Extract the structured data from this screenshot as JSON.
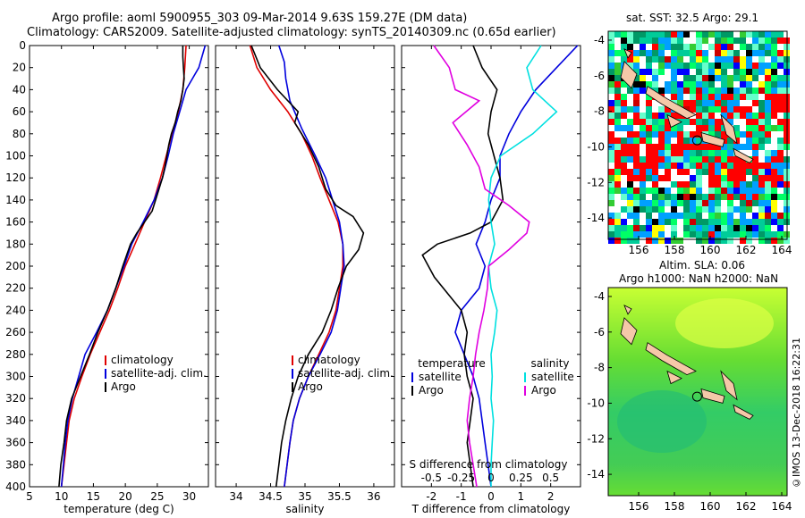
{
  "header": {
    "title_line1": "Argo profile: aoml 5900955_303 09-Mar-2014 9.63S 159.27E (DM data)",
    "title_line2": "Climatology: CARS2009. Satellite-adjusted climatology: synTS_20140309.nc (0.65d earlier)"
  },
  "colors": {
    "climatology": "#e00000",
    "satellite": "#0000dd",
    "argo": "#000000",
    "sal_satellite": "#00e0e0",
    "sal_argo": "#e000e0"
  },
  "chart_data": [
    {
      "type": "line",
      "id": "temperature",
      "xlabel": "temperature (deg C)",
      "xlim": [
        5,
        33
      ],
      "ylim": [
        400,
        0
      ],
      "xticks": [
        5,
        10,
        15,
        20,
        25,
        30
      ],
      "yticks": [
        0,
        20,
        40,
        60,
        80,
        100,
        120,
        140,
        160,
        180,
        200,
        220,
        240,
        260,
        280,
        300,
        320,
        340,
        360,
        380,
        400
      ],
      "legend": [
        "climatology",
        "satellite-adj. clim.",
        "Argo"
      ],
      "series": [
        {
          "name": "climatology",
          "color": "#e00000",
          "points": [
            [
              29.5,
              0
            ],
            [
              29.3,
              20
            ],
            [
              29.0,
              40
            ],
            [
              28.3,
              60
            ],
            [
              27.3,
              80
            ],
            [
              26.4,
              100
            ],
            [
              25.5,
              120
            ],
            [
              24.5,
              140
            ],
            [
              23.0,
              160
            ],
            [
              21.5,
              180
            ],
            [
              20.0,
              200
            ],
            [
              18.8,
              220
            ],
            [
              17.5,
              240
            ],
            [
              16.0,
              260
            ],
            [
              14.5,
              280
            ],
            [
              13.2,
              300
            ],
            [
              12.0,
              320
            ],
            [
              11.2,
              340
            ],
            [
              10.8,
              360
            ],
            [
              10.4,
              380
            ],
            [
              10.0,
              400
            ]
          ]
        },
        {
          "name": "satellite-adj. clim.",
          "color": "#0000dd",
          "points": [
            [
              32.5,
              0
            ],
            [
              31.5,
              20
            ],
            [
              29.5,
              40
            ],
            [
              28.5,
              60
            ],
            [
              27.5,
              80
            ],
            [
              26.7,
              100
            ],
            [
              25.8,
              120
            ],
            [
              24.5,
              140
            ],
            [
              22.8,
              160
            ],
            [
              21.0,
              180
            ],
            [
              19.8,
              200
            ],
            [
              18.5,
              220
            ],
            [
              17.2,
              240
            ],
            [
              15.5,
              260
            ],
            [
              13.7,
              280
            ],
            [
              12.7,
              300
            ],
            [
              11.7,
              320
            ],
            [
              11.0,
              340
            ],
            [
              10.6,
              360
            ],
            [
              10.3,
              380
            ],
            [
              10.0,
              400
            ]
          ]
        },
        {
          "name": "Argo",
          "color": "#000000",
          "points": [
            [
              29.0,
              0
            ],
            [
              29.0,
              10
            ],
            [
              29.1,
              20
            ],
            [
              29.2,
              30
            ],
            [
              29.0,
              40
            ],
            [
              28.7,
              50
            ],
            [
              28.2,
              60
            ],
            [
              27.8,
              70
            ],
            [
              27.2,
              80
            ],
            [
              26.8,
              90
            ],
            [
              26.5,
              100
            ],
            [
              26.2,
              110
            ],
            [
              25.8,
              120
            ],
            [
              25.0,
              135
            ],
            [
              24.2,
              150
            ],
            [
              23.0,
              160
            ],
            [
              21.8,
              170
            ],
            [
              20.8,
              180
            ],
            [
              20.2,
              190
            ],
            [
              19.6,
              200
            ],
            [
              18.5,
              220
            ],
            [
              17.2,
              240
            ],
            [
              15.7,
              260
            ],
            [
              14.4,
              280
            ],
            [
              13.0,
              300
            ],
            [
              11.6,
              320
            ],
            [
              10.8,
              340
            ],
            [
              10.4,
              360
            ],
            [
              9.9,
              380
            ],
            [
              9.6,
              400
            ]
          ]
        }
      ]
    },
    {
      "type": "line",
      "id": "salinity",
      "xlabel": "salinity",
      "xlim": [
        33.7,
        36.3
      ],
      "ylim": [
        400,
        0
      ],
      "xticks": [
        34,
        34.5,
        35,
        35.5,
        36
      ],
      "legend": [
        "climatology",
        "satellite-adj. clim.",
        "Argo"
      ],
      "series": [
        {
          "name": "climatology",
          "color": "#e00000",
          "points": [
            [
              34.2,
              0
            ],
            [
              34.3,
              20
            ],
            [
              34.5,
              40
            ],
            [
              34.75,
              60
            ],
            [
              34.95,
              80
            ],
            [
              35.1,
              100
            ],
            [
              35.22,
              120
            ],
            [
              35.35,
              140
            ],
            [
              35.48,
              160
            ],
            [
              35.55,
              180
            ],
            [
              35.55,
              200
            ],
            [
              35.5,
              220
            ],
            [
              35.45,
              240
            ],
            [
              35.35,
              260
            ],
            [
              35.2,
              280
            ],
            [
              35.05,
              300
            ],
            [
              34.92,
              320
            ],
            [
              34.83,
              340
            ],
            [
              34.78,
              360
            ],
            [
              34.74,
              380
            ],
            [
              34.7,
              400
            ]
          ]
        },
        {
          "name": "satellite-adj. clim.",
          "color": "#0000dd",
          "points": [
            [
              34.62,
              0
            ],
            [
              34.7,
              15
            ],
            [
              34.72,
              30
            ],
            [
              34.78,
              50
            ],
            [
              34.95,
              75
            ],
            [
              35.15,
              100
            ],
            [
              35.3,
              120
            ],
            [
              35.4,
              140
            ],
            [
              35.5,
              160
            ],
            [
              35.55,
              180
            ],
            [
              35.57,
              200
            ],
            [
              35.52,
              220
            ],
            [
              35.47,
              240
            ],
            [
              35.38,
              260
            ],
            [
              35.22,
              280
            ],
            [
              35.05,
              300
            ],
            [
              34.92,
              320
            ],
            [
              34.83,
              340
            ],
            [
              34.78,
              360
            ],
            [
              34.74,
              380
            ],
            [
              34.7,
              400
            ]
          ]
        },
        {
          "name": "Argo",
          "color": "#000000",
          "points": [
            [
              34.22,
              0
            ],
            [
              34.35,
              20
            ],
            [
              34.6,
              40
            ],
            [
              34.9,
              60
            ],
            [
              34.85,
              70
            ],
            [
              35.05,
              90
            ],
            [
              35.2,
              110
            ],
            [
              35.3,
              130
            ],
            [
              35.45,
              145
            ],
            [
              35.7,
              155
            ],
            [
              35.85,
              170
            ],
            [
              35.78,
              185
            ],
            [
              35.6,
              200
            ],
            [
              35.48,
              220
            ],
            [
              35.38,
              240
            ],
            [
              35.25,
              260
            ],
            [
              35.05,
              280
            ],
            [
              34.9,
              300
            ],
            [
              34.8,
              320
            ],
            [
              34.72,
              340
            ],
            [
              34.66,
              360
            ],
            [
              34.62,
              380
            ],
            [
              34.58,
              400
            ]
          ]
        }
      ]
    },
    {
      "type": "line",
      "id": "difference",
      "xlabel": "T difference from climatology",
      "xlabel_top": "S difference from climatology",
      "xlim": [
        -3,
        3
      ],
      "ylim": [
        400,
        0
      ],
      "xticks": [
        -2,
        -1,
        0,
        1,
        2
      ],
      "sticks_labels": [
        "-0.5",
        "-0.25",
        "0",
        "0.25",
        "0.5"
      ],
      "sxlim": [
        -0.75,
        0.75
      ],
      "legend_temperature_title": "temperature",
      "legend_salinity_title": "salinity",
      "legend_temperature": [
        "satellite",
        "Argo"
      ],
      "legend_salinity": [
        "satellite",
        "Argo"
      ],
      "series": [
        {
          "name": "T satellite",
          "color": "#0000dd",
          "points": [
            [
              2.9,
              0
            ],
            [
              2.2,
              20
            ],
            [
              1.5,
              40
            ],
            [
              1.0,
              60
            ],
            [
              0.6,
              80
            ],
            [
              0.3,
              100
            ],
            [
              0.3,
              120
            ],
            [
              0.0,
              140
            ],
            [
              -0.2,
              160
            ],
            [
              -0.5,
              180
            ],
            [
              -0.2,
              200
            ],
            [
              -0.4,
              220
            ],
            [
              -1.0,
              240
            ],
            [
              -1.2,
              260
            ],
            [
              -0.9,
              280
            ],
            [
              -0.6,
              300
            ],
            [
              -0.4,
              320
            ],
            [
              -0.3,
              340
            ],
            [
              -0.2,
              360
            ],
            [
              -0.1,
              380
            ],
            [
              0.0,
              400
            ]
          ]
        },
        {
          "name": "T Argo",
          "color": "#000000",
          "points": [
            [
              -0.6,
              0
            ],
            [
              -0.3,
              20
            ],
            [
              0.2,
              40
            ],
            [
              0.0,
              60
            ],
            [
              -0.1,
              80
            ],
            [
              0.1,
              100
            ],
            [
              0.3,
              120
            ],
            [
              0.4,
              140
            ],
            [
              0.0,
              160
            ],
            [
              -0.7,
              170
            ],
            [
              -1.8,
              180
            ],
            [
              -2.3,
              190
            ],
            [
              -1.9,
              210
            ],
            [
              -1.0,
              240
            ],
            [
              -0.8,
              260
            ],
            [
              -0.9,
              280
            ],
            [
              -0.8,
              300
            ],
            [
              -0.6,
              320
            ],
            [
              -0.7,
              340
            ],
            [
              -0.8,
              360
            ],
            [
              -0.7,
              380
            ],
            [
              -0.6,
              400
            ]
          ]
        },
        {
          "name": "S satellite",
          "color": "#00e0e0",
          "unit": "S",
          "points": [
            [
              0.42,
              0
            ],
            [
              0.3,
              20
            ],
            [
              0.35,
              40
            ],
            [
              0.55,
              60
            ],
            [
              0.35,
              80
            ],
            [
              0.08,
              100
            ],
            [
              0.0,
              120
            ],
            [
              -0.02,
              140
            ],
            [
              0.0,
              160
            ],
            [
              0.03,
              180
            ],
            [
              -0.02,
              200
            ],
            [
              0.0,
              220
            ],
            [
              0.05,
              240
            ],
            [
              0.03,
              260
            ],
            [
              0.0,
              280
            ],
            [
              0.01,
              300
            ],
            [
              0.0,
              320
            ],
            [
              0.02,
              340
            ],
            [
              0.01,
              360
            ],
            [
              0.0,
              380
            ],
            [
              0.0,
              400
            ]
          ]
        },
        {
          "name": "S Argo",
          "color": "#e000e0",
          "unit": "S",
          "points": [
            [
              -0.48,
              0
            ],
            [
              -0.35,
              20
            ],
            [
              -0.3,
              40
            ],
            [
              -0.1,
              50
            ],
            [
              -0.32,
              70
            ],
            [
              -0.2,
              90
            ],
            [
              -0.1,
              110
            ],
            [
              -0.05,
              130
            ],
            [
              0.15,
              145
            ],
            [
              0.32,
              160
            ],
            [
              0.3,
              170
            ],
            [
              0.15,
              185
            ],
            [
              -0.02,
              200
            ],
            [
              -0.03,
              220
            ],
            [
              -0.06,
              240
            ],
            [
              -0.1,
              260
            ],
            [
              -0.13,
              280
            ],
            [
              -0.15,
              300
            ],
            [
              -0.18,
              320
            ],
            [
              -0.2,
              340
            ],
            [
              -0.18,
              360
            ],
            [
              -0.15,
              380
            ],
            [
              -0.12,
              400
            ]
          ]
        }
      ]
    },
    {
      "type": "heatmap",
      "id": "sst_map",
      "title": "sat. SST: 32.5 Argo: 29.1",
      "xticks": [
        156,
        158,
        160,
        162,
        164
      ],
      "yticks": [
        -4,
        -6,
        -8,
        -10,
        -12,
        -14
      ],
      "xlim": [
        154.3,
        164.3
      ],
      "ylim": [
        -15.2,
        -3.5
      ],
      "argo_position": [
        159.27,
        -9.63
      ]
    },
    {
      "type": "heatmap",
      "id": "sla_map",
      "title_line1": "Altim. SLA: 0.06",
      "title_line2": "Argo h1000: NaN h2000: NaN",
      "xticks": [
        156,
        158,
        160,
        162,
        164
      ],
      "yticks": [
        -4,
        -6,
        -8,
        -10,
        -12,
        -14
      ],
      "xlim": [
        154.3,
        164.3
      ],
      "ylim": [
        -15.2,
        -3.5
      ],
      "argo_position": [
        159.27,
        -9.63
      ]
    }
  ],
  "credit": "©IMOS 13-Dec-2018 16:22:31"
}
